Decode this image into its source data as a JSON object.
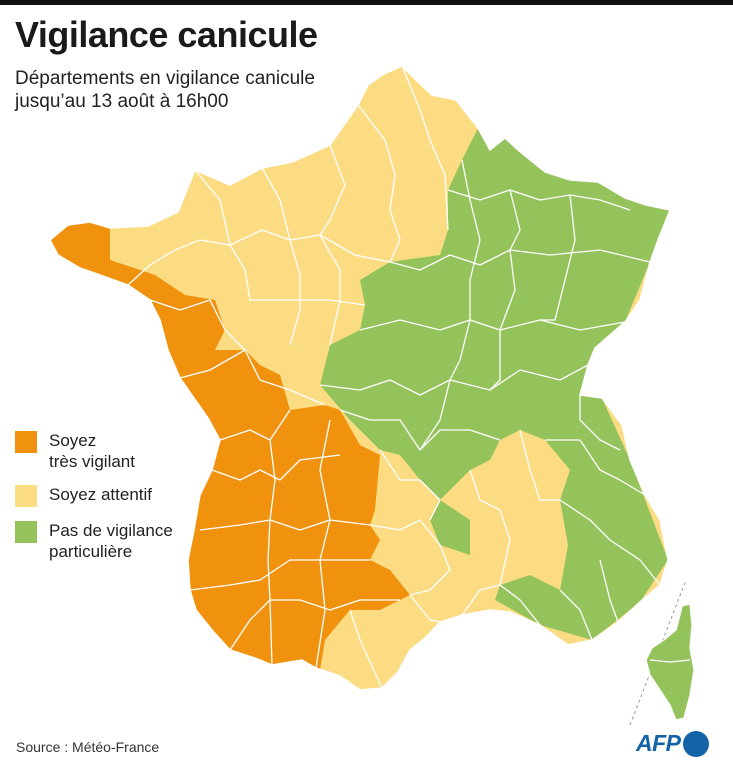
{
  "title": "Vigilance canicule",
  "subtitle": {
    "line1": "Départements en vigilance canicule",
    "line2": "jusqu’au 13 août à 16h00"
  },
  "colors": {
    "orange": "#f0920e",
    "yellow": "#fbdc82",
    "green": "#93c35a",
    "border": "#ffffff"
  },
  "legend": [
    {
      "key": "orange",
      "line1": "Soyez",
      "line2": "très vigilant"
    },
    {
      "key": "yellow",
      "line1": "Soyez attentif",
      "line2": ""
    },
    {
      "key": "green",
      "line1": "Pas de vigilance",
      "line2": "particulière"
    }
  ],
  "source": "Source : Météo-France",
  "logo": "AFP"
}
